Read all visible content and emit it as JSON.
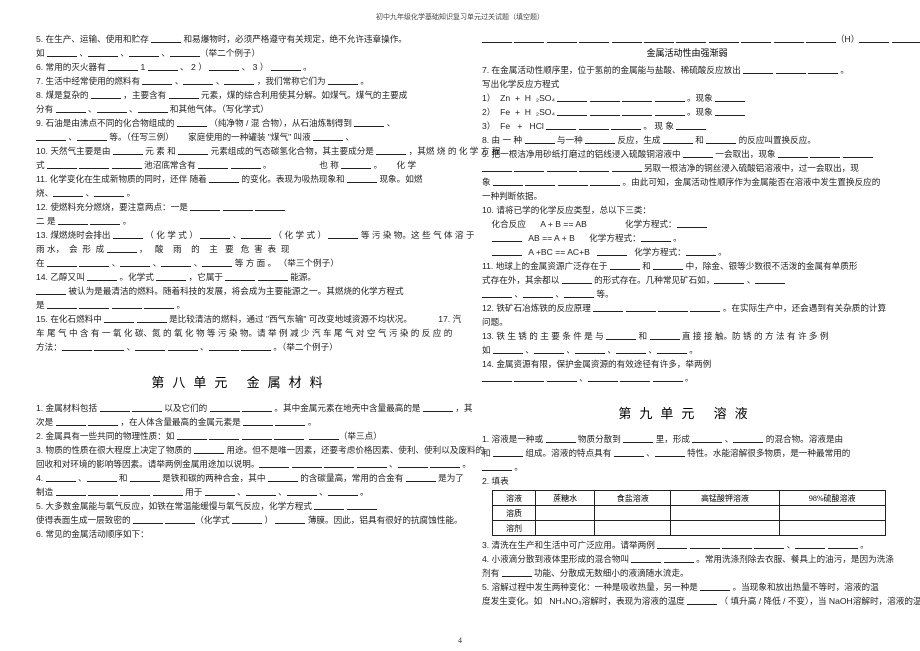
{
  "header": "初中九年级化学基础知识复习单元过关试题（填空题）",
  "pageNumber": "4",
  "left": {
    "lines": [
      "5. 在生产、运输、使用和贮存 ________ 和易爆物时，必须严格遵守有关规定，绝不允许违章操作。",
      "如 ________ 、________ 、________ 、________（举二个例子）",
      "6. 常用的灭火器有 ________ 1 ________ 、 2 ） ________ 、 3 ） ________ 。",
      "7. 生活中经常使用的燃料有 ________ 、________ 、________ ，我们常称它们为 ________ 。",
      "8. 煤是复杂的 ________ ，主要含有 ________ 元素，煤的综合利用使其分解。如煤气。煤气的主要成",
      "分有 ________ 、________ 、________ 和其他气体。（写化学式）",
      "9. 石油是由沸点不同的化合物组成的 ________ （纯净物 / 混 合物），从石油炼制得到 ________ 、",
      "________ 、________ 等。（任写三例）      家庭使用的一种罐装 \"煤气\" 叫液 ________ 、",
      "10. 天然气主要是由 ________ 元 素 和 ________ 元素组成的气态碳氢化合物，其主要成分是 ________ ，其燃 烧 的 化 学 方 程",
      "式 ________ ________ ________ 池沼底常含有 ________ ________ 。                    也 称 ________ 。      化 学",
      "11. 化学变化在生成新物质的同时，还伴 随着 ________ 的变化。表现为吸热现象和 ________ 现象。如燃",
      "烧、________ 、________ 。",
      "12. 使燃料充分燃烧，要注意两点：一是 ________ ________ ________",
      "二 是 ________ ________ 。",
      "13. 煤燃烧时会排出 ________ （ 化 学 式 ） ________ 、________ （ 化 学 式 ） ________ 等 污 染 物。这 些 气 体 溶 于",
      "雨 水，  会  形  成 ________ ，   酸    雨    的    主   要   危  害  表  现",
      "在 ________ ________ 、________ 、________ 、________ 等 方 面 。 （举三个例子）",
      "14. 乙醇又叫 ________ 。化学式 ________ ，它属于 ________ ________ 能源。",
      "________ 被认为是最清洁的燃料。随着科技的发展，将会成为主要能源之一。其燃烧的化学方程式",
      "是 ________ ________ ________ ________ 。",
      "15. 在化石燃料中 ________ ________ 是比较清洁的燃料，通过 \"西气东输\" 可改变地域资源不均状况。           17. 汽",
      "车 尾 气 中 含 有 一 氧 化 碳、氮 的 氧 化 物 等 污 染 物。请 举 例 减 少 汽 车 尾 气 对 空 气 污 染 的 反 应 的",
      "方法：________ ________ 、________ ________ 、________ ________ 。（举二个例子）"
    ],
    "unit8Title": "第八单元      金属材料",
    "unit8Lines": [
      "1. 金属材料包括 ________ ________ 以及它们的 ________ ________ 。其中金属元素在地壳中含量最高的是 ________ ，其",
      "次是 ________ ________ ，在人体含量最高的金属元素是 ________ ________ 。",
      "2. 金属具有一些共同的物理性质：如 ________ ________ ________ ________  ________（举三点）",
      "3. 物质的性质在很大程度上决定了物质的 ________ 用途。但不是唯一因素，还要考虑价格因素、使利、使利以及废料的",
      "回收和对环境的影响等因素。请举两例金属用途加以说明。________ ________ ________ ________ 、________ ________ 。",
      "",
      "4. ________ 、________ 和 ________ 是铁和碳的两种合金，其中 ________ 的含碳量高，常用的合金有 ________ 是为了",
      "制造 ________ ________ ________ ________ 用于 ________ 、________ 、________ 、________ 。",
      "5. 大多数金属能与氧气反应，如铁在常温能缓慢与氧气反应，化学方程式 ________ ________",
      "使得表面生成一层致密的 ________ ________（化学式 ________ ） ________ 薄膜。因此，铝具有很好的抗腐蚀性能。",
      "6. 常见的金属活动顺序如下："
    ]
  },
  "right": {
    "preLines": [
      "________ ________ ________ ________ ________ ________ ________ ________ ________ ________ ________（H）________ ________ ________",
      "金属活动性由强渐弱"
    ],
    "lines7to12": [
      "7. 在金属活动性顺序里，位于氢前的金属能与盐酸、稀硫酸反应放出 ________ ________ ________ 。",
      "写出化学反应方程式",
      "1）  Zn  +  H  ₂SO₄ ________ ________ ________ ________ 。现象 ________",
      "2）  Fe  +  H  ₂SO₄ ________ ________ ________ ________ 。现象 ________",
      "3）  Fe   +   HCl ________ ________ ________ 。 现 象 ________",
      "8. 由 一 种 ________ 与一种 ________ 反应，生成 ________ 和 ________ 的反应叫置换反应。",
      "9. 把一根洁净用砂纸打磨过的铝线浸入硫酸铜溶液中 ________ 一会取出，现象 ________ ________ ________",
      "________ ________ ________ ________ ________ 另取一根洁净的铜丝浸入硫酸铝溶液中，过一会取出，现",
      "象 ________ ________ ________ ________ 。由此可知，金属活动性顺序作为金属能否在溶液中发生置换反应的",
      "一种判断依据。",
      "10. 请将已学的化学反应类型，总以下三类：",
      "    化合反应      A + B == AB                化学方程式：________",
      "    ________   AB == A + B      化学方程式：________ 。",
      "    ________   A +BC == AC+B   ________   化学方程式：________ 。",
      "11. 地球上的金属资源广泛存在于 ________ 和 ________ 中，除金、银等少数很不活泼的金属有单质形",
      "式存在外，其余都以 ________ 的形式存在。几种常见矿石如，________ 、________",
      "________ 、________ 、________ 等。",
      "12. 铁矿石冶炼铁的反应原理 ________ ________ ________ ________ 。在实际生产中，还会遇到有关杂质的计算",
      "问题。",
      "13. 铁 生 锈 的 主 要 条 件 是 与 ________ 和 ________ 直 接 接 触。防 锈 的 方 法 有 许 多 例",
      "如 ________ 、________ 、________ 、________ 、________ 。",
      "14. 金属资源有限，保护金属资源的有效途径有许多，举两例",
      "________ ________ ________ 、________ ________ ________ 。"
    ],
    "unit9Title": "第九单元      溶液",
    "unit9Lines": [
      "1. 溶液是一种或 ________ 物质分散到 ________ 里，形成 ________ 、________ 的混合物。溶液是由",
      "和 ________ 组成。溶液的特点具有 ________ 、________ 特性。水能溶解很多物质，是一种最常用的",
      "________ 。",
      "2. 填表"
    ],
    "table": {
      "headers": [
        "溶液",
        "蔗糖水",
        "食盐溶液",
        "高锰酸钾溶液",
        "98%硫酸溶液"
      ],
      "rows": [
        [
          "溶质",
          "",
          "",
          "",
          ""
        ],
        [
          "溶剂",
          "",
          "",
          "",
          ""
        ]
      ]
    },
    "afterTable": [
      "3. 清洗在生产和生活中可广泛应用。请举两例 ________ ________ ________ ________ 、________ ________ 。",
      "4. 小液滴分散到液体里形成的混合物叫 ________ ________ 。常用洗涤剂除去衣服、餐具上的油污，是因为洗涤",
      "剂有 ________ 功能、分散成无数细小的液滴随水流走。",
      "5. 溶解过程中发生两种变化：一种是吸收热量，另一种是 ________ 。当现象和放出热量不等时，溶液的温",
      "度发生变化。如   NH₄NO₃溶解时，表现为溶液的温度 ________ （ 填升高 / 降低 / 不变），当 NaOH溶解时，溶液的温"
    ]
  }
}
